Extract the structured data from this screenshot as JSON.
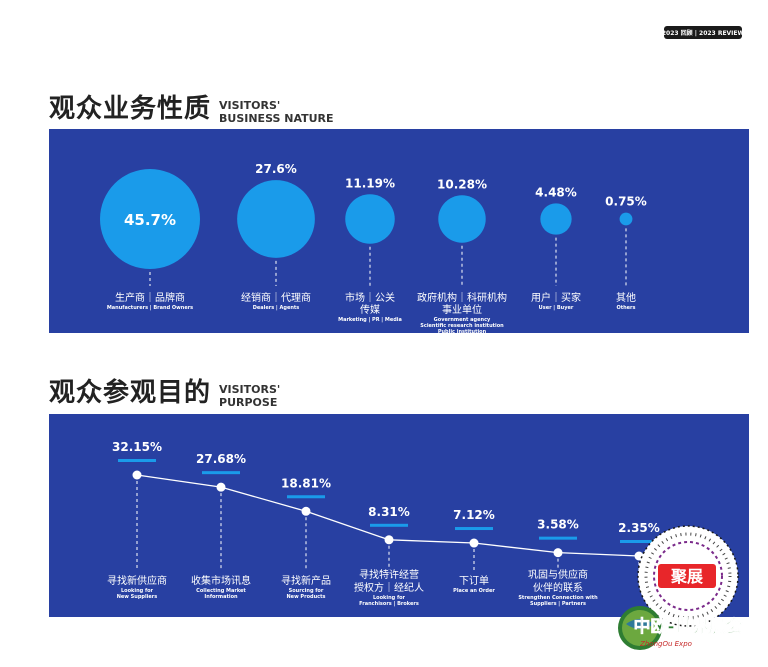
{
  "header": {
    "badge": "2023 回顾 | 2023 REVIEW"
  },
  "sections": {
    "business": {
      "title_zh": "观众业务性质",
      "title_en_1": "VISITORS'",
      "title_en_2": "BUSINESS NATURE"
    },
    "purpose": {
      "title_zh": "观众参观目的",
      "title_en_1": "VISITORS'",
      "title_en_2": "PURPOSE"
    }
  },
  "logo": {
    "badge_text": "聚展",
    "name_zh": "中欧-世界展会",
    "name_en": "ZhongOu Expo"
  },
  "colors": {
    "panel": "#2840a2",
    "bubble": "#1a9bea",
    "accent": "#1a9bea",
    "line": "#ffffff"
  },
  "chart_data": [
    {
      "type": "bubble",
      "categories": [
        {
          "zh": [
            "生产商｜品牌商"
          ],
          "en": [
            "Manufacturers | Brand Owners"
          ]
        },
        {
          "zh": [
            "经销商｜代理商"
          ],
          "en": [
            "Dealers | Agents"
          ]
        },
        {
          "zh": [
            "市场｜公关",
            "传媒"
          ],
          "en": [
            "Marketing | PR | Media"
          ]
        },
        {
          "zh": [
            "政府机构｜科研机构",
            "事业单位"
          ],
          "en": [
            "Government agency",
            "Scientific research institution",
            "Public institution"
          ]
        },
        {
          "zh": [
            "用户｜买家"
          ],
          "en": [
            "User | Buyer"
          ]
        },
        {
          "zh": [
            "其他"
          ],
          "en": [
            "Others"
          ]
        }
      ],
      "values": [
        45.7,
        27.6,
        11.19,
        10.28,
        4.48,
        0.75
      ],
      "labels": [
        "45.7%",
        "27.6%",
        "11.19%",
        "10.28%",
        "4.48%",
        "0.75%"
      ]
    },
    {
      "type": "line",
      "categories": [
        {
          "zh": [
            "寻找新供应商"
          ],
          "en": [
            "Looking for",
            "New Suppliers"
          ]
        },
        {
          "zh": [
            "收集市场讯息"
          ],
          "en": [
            "Collecting Market",
            "Information"
          ]
        },
        {
          "zh": [
            "寻找新产品"
          ],
          "en": [
            "Sourcing for",
            "New Products"
          ]
        },
        {
          "zh": [
            "寻找特许经营",
            "授权方｜经纪人"
          ],
          "en": [
            "Looking for",
            "Franchisors | Brokers"
          ]
        },
        {
          "zh": [
            "下订单"
          ],
          "en": [
            "Place an Order"
          ]
        },
        {
          "zh": [
            "巩固与供应商",
            "伙伴的联系"
          ],
          "en": [
            "Strengthen Connection with",
            "Suppliers | Partners"
          ]
        },
        {
          "zh": [
            ""
          ],
          "en": [
            ""
          ]
        }
      ],
      "values": [
        32.15,
        27.68,
        18.81,
        8.31,
        7.12,
        3.58,
        2.35
      ],
      "labels": [
        "32.15%",
        "27.68%",
        "18.81%",
        "8.31%",
        "7.12%",
        "3.58%",
        "2.35%"
      ]
    }
  ]
}
